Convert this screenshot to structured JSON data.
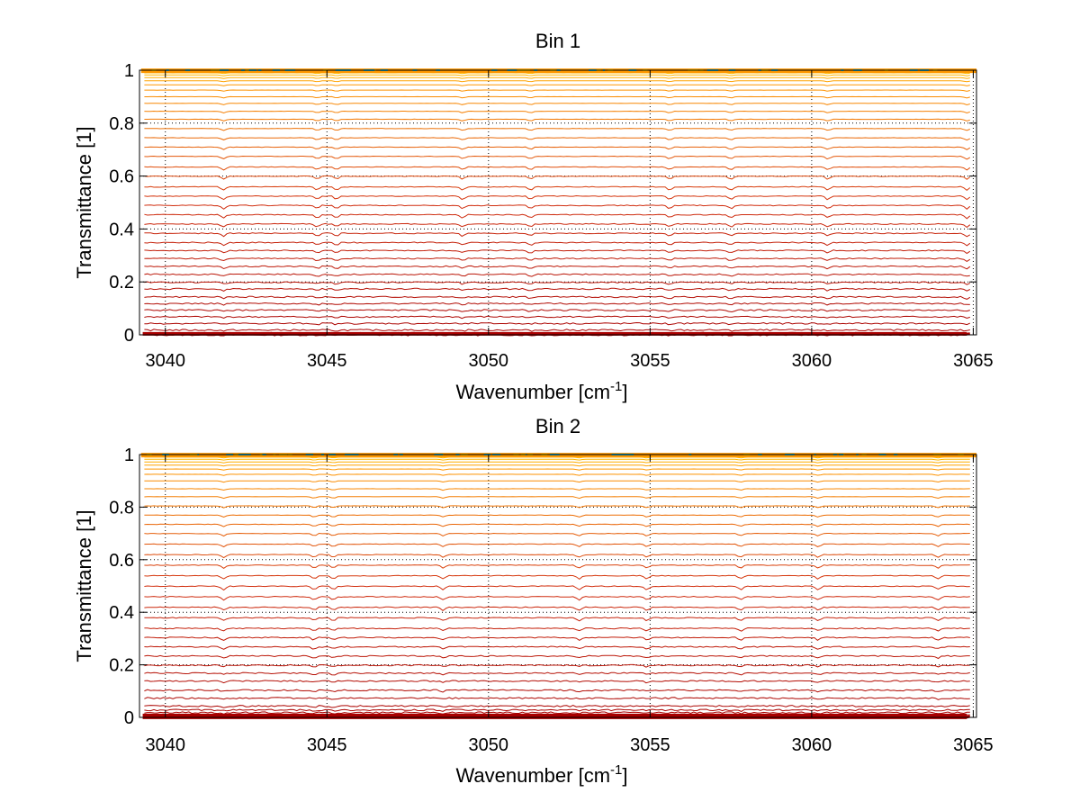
{
  "chart_data": [
    {
      "type": "line",
      "title": "Bin 1",
      "xlabel": "Wavenumber [cm",
      "xlabel_sup": "-1",
      "xlabel_suffix": "]",
      "ylabel": "Transmittance [1]",
      "xlim": [
        3039.2,
        3065.1
      ],
      "ylim": [
        0,
        1
      ],
      "xticks": [
        3040,
        3045,
        3050,
        3055,
        3060,
        3065
      ],
      "xtick_labels": [
        "3040",
        "3045",
        "3050",
        "3055",
        "3060",
        "3065"
      ],
      "yticks": [
        0,
        0.2,
        0.4,
        0.6,
        0.8,
        1
      ],
      "ytick_labels": [
        "0",
        "0.2",
        "0.4",
        "0.6",
        "0.8",
        "1"
      ],
      "grid": true,
      "series_levels": [
        0.005,
        0.02,
        0.045,
        0.07,
        0.095,
        0.12,
        0.145,
        0.175,
        0.2,
        0.23,
        0.26,
        0.29,
        0.32,
        0.35,
        0.385,
        0.42,
        0.455,
        0.49,
        0.525,
        0.56,
        0.6,
        0.635,
        0.675,
        0.71,
        0.745,
        0.78,
        0.815,
        0.845,
        0.875,
        0.9,
        0.925,
        0.945,
        0.96,
        0.972,
        0.982,
        0.99,
        0.995,
        0.998
      ],
      "dip_positions": [
        3041.8,
        3044.7,
        3045.3,
        3049.2,
        3051.3,
        3055.6,
        3057.5,
        3060.5,
        3064.8
      ],
      "colors": {
        "low": "#a80000",
        "mid": "#d23010",
        "high": "#ff9800",
        "top": "#ffc800",
        "cyan": "#22b8d8"
      }
    },
    {
      "type": "line",
      "title": "Bin 2",
      "xlabel": "Wavenumber [cm",
      "xlabel_sup": "-1",
      "xlabel_suffix": "]",
      "ylabel": "Transmittance [1]",
      "xlim": [
        3039.2,
        3065.1
      ],
      "ylim": [
        0,
        1
      ],
      "xticks": [
        3040,
        3045,
        3050,
        3055,
        3060,
        3065
      ],
      "xtick_labels": [
        "3040",
        "3045",
        "3050",
        "3055",
        "3060",
        "3065"
      ],
      "yticks": [
        0,
        0.2,
        0.4,
        0.6,
        0.8,
        1
      ],
      "ytick_labels": [
        "0",
        "0.2",
        "0.4",
        "0.6",
        "0.8",
        "1"
      ],
      "grid": true,
      "series_levels": [
        0.005,
        0.012,
        0.02,
        0.03,
        0.045,
        0.075,
        0.105,
        0.14,
        0.17,
        0.2,
        0.235,
        0.27,
        0.305,
        0.34,
        0.38,
        0.42,
        0.46,
        0.5,
        0.54,
        0.58,
        0.62,
        0.66,
        0.7,
        0.735,
        0.77,
        0.805,
        0.84,
        0.87,
        0.9,
        0.925,
        0.945,
        0.96,
        0.972,
        0.982,
        0.99,
        0.995,
        0.998
      ],
      "dip_positions": [
        3041.8,
        3044.6,
        3045.2,
        3048.6,
        3052.8,
        3054.9,
        3057.8,
        3060.2,
        3063.9
      ],
      "colors": {
        "low": "#a80000",
        "mid": "#d23010",
        "high": "#ff9800",
        "top": "#ffc800",
        "cyan": "#22b8d8"
      }
    }
  ]
}
